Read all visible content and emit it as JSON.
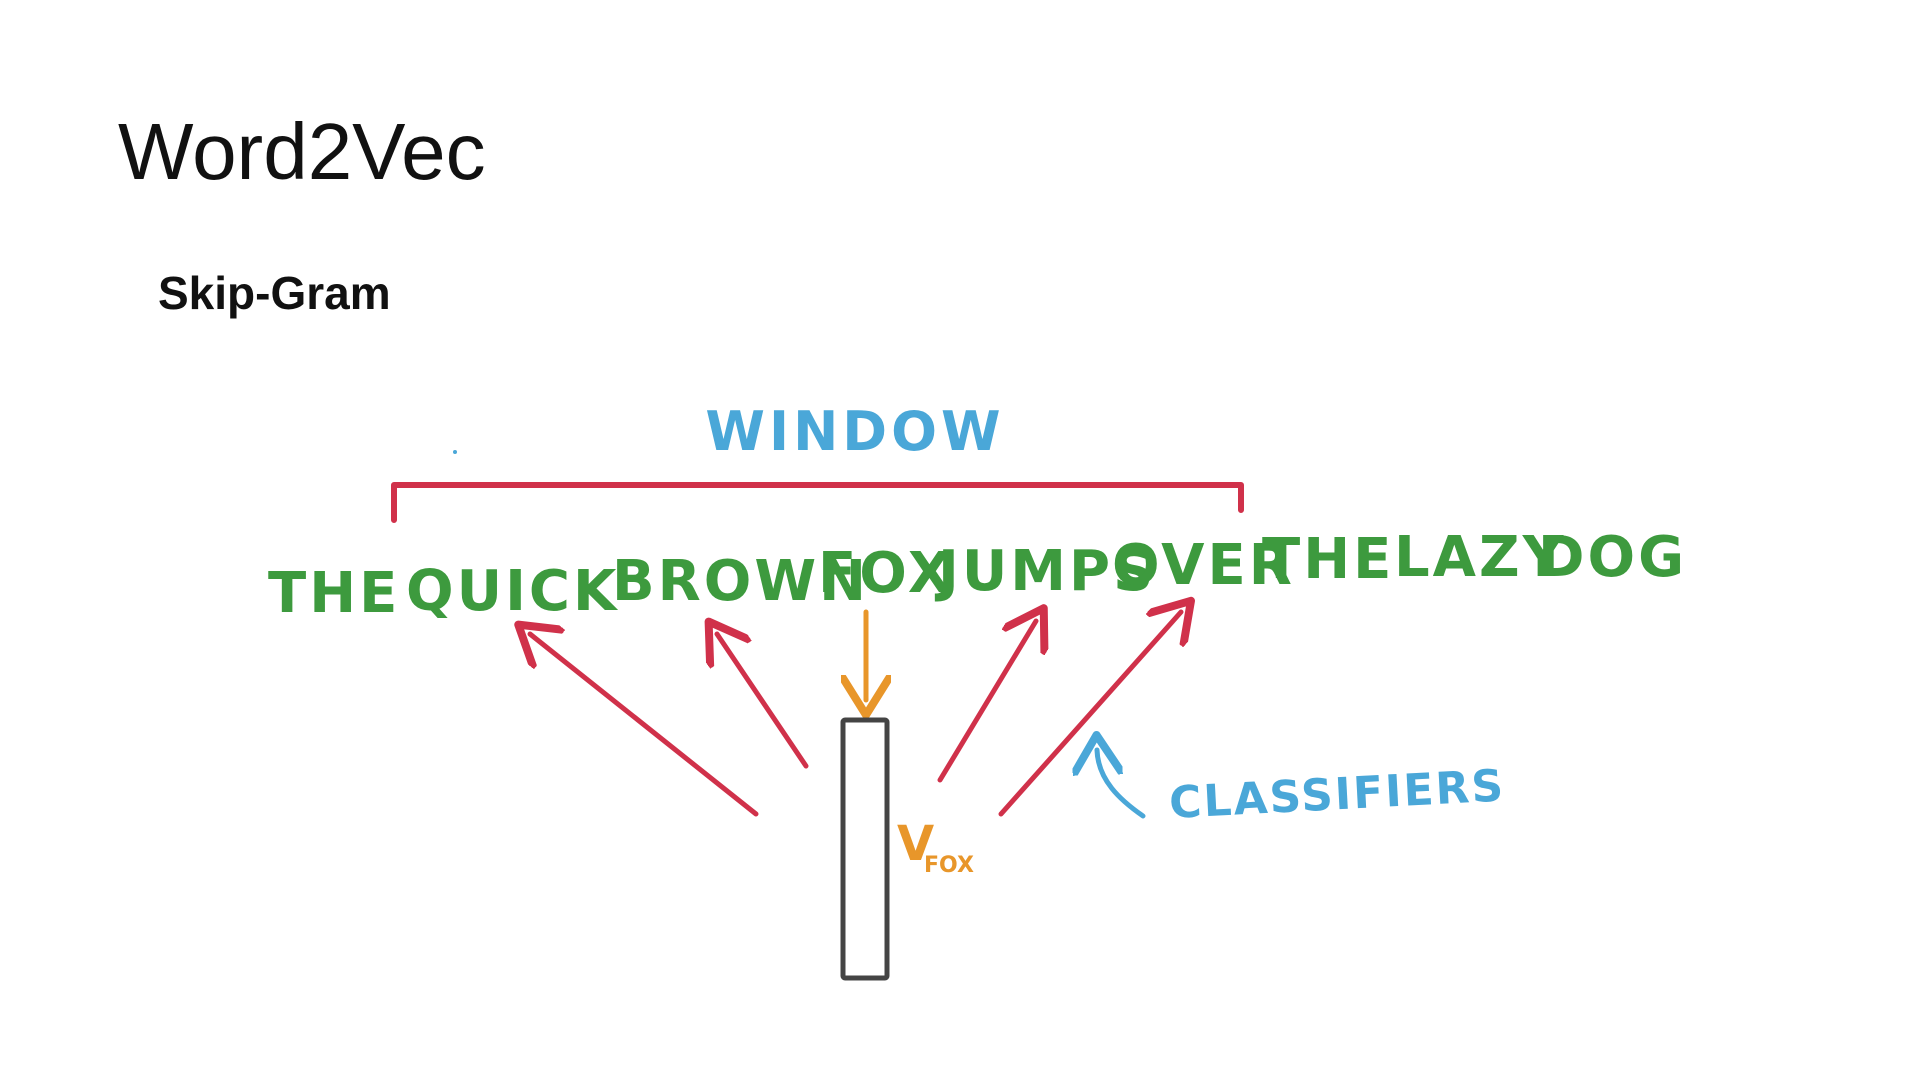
{
  "slide": {
    "title": "Word2Vec",
    "subtitle": "Skip-Gram"
  },
  "diagram": {
    "window_label": "WINDOW",
    "sentence_words": [
      "THE",
      "QUICK",
      "BROWN",
      "FOX",
      "JUMPS",
      "OVER",
      "THE",
      "LAZY",
      "DOG"
    ],
    "vector_label": "V",
    "vector_subscript": "FOX",
    "classifiers_label": "CLASSIFIERS",
    "colors": {
      "window": "#4aa7d8",
      "bracket": "#d0314a",
      "sentence": "#3d9a3e",
      "context_arrows": "#d0314a",
      "input_arrow": "#e8962a",
      "vector_box": "#444444",
      "classifiers": "#4aa7d8"
    }
  }
}
